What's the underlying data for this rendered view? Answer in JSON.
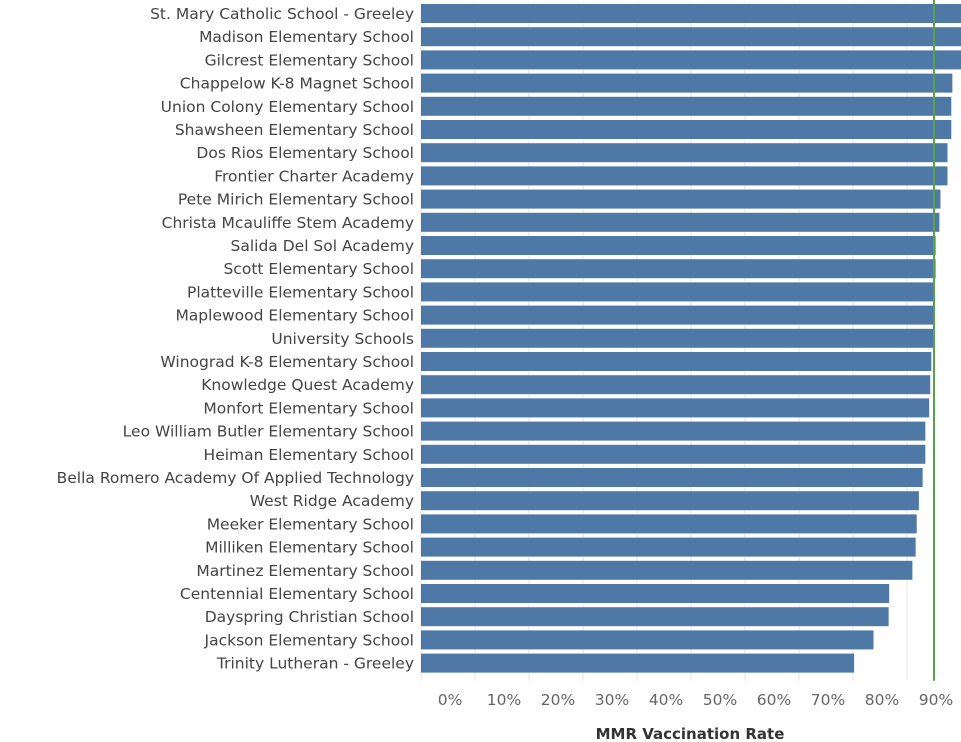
{
  "chart_data": {
    "type": "bar",
    "orientation": "horizontal",
    "title": "",
    "xlabel": "MMR Vaccination Rate",
    "ylabel": "",
    "xlim": [
      0,
      100
    ],
    "x_ticks": [
      0,
      10,
      20,
      30,
      40,
      50,
      60,
      70,
      80,
      90
    ],
    "x_tick_labels": [
      "0%",
      "10%",
      "20%",
      "30%",
      "40%",
      "50%",
      "60%",
      "70%",
      "80%",
      "90%"
    ],
    "grid": true,
    "bar_color": "#4e79a7",
    "reference_line": {
      "value": 95,
      "color": "#59a14f"
    },
    "categories": [
      "St. Mary Catholic School - Greeley",
      "Madison Elementary School",
      "Gilcrest Elementary School",
      "Chappelow K-8 Magnet School",
      "Union Colony Elementary School",
      "Shawsheen Elementary School",
      "Dos Rios Elementary School",
      "Frontier Charter Academy",
      "Pete Mirich Elementary School",
      "Christa Mcauliffe Stem Academy",
      "Salida Del Sol Academy",
      "Scott Elementary School",
      "Platteville Elementary School",
      "Maplewood Elementary School",
      "University Schools",
      "Winograd K-8 Elementary School",
      "Knowledge Quest Academy",
      "Monfort Elementary School",
      "Leo William Butler Elementary School",
      "Heiman Elementary School",
      "Bella Romero Academy Of Applied Technology",
      "West Ridge Academy",
      "Meeker Elementary School",
      "Milliken Elementary School",
      "Martinez Elementary School",
      "Centennial Elementary School",
      "Dayspring Christian School",
      "Jackson Elementary School",
      "Trinity Lutheran - Greeley"
    ],
    "values": [
      100,
      100,
      100,
      98.4,
      98.2,
      98.2,
      97.5,
      97.5,
      96.2,
      96.0,
      95.3,
      95.3,
      95.1,
      95.1,
      95.1,
      94.5,
      94.3,
      94.1,
      93.4,
      93.4,
      92.9,
      92.2,
      91.8,
      91.6,
      91.0,
      86.7,
      86.6,
      83.8,
      80.2
    ]
  }
}
